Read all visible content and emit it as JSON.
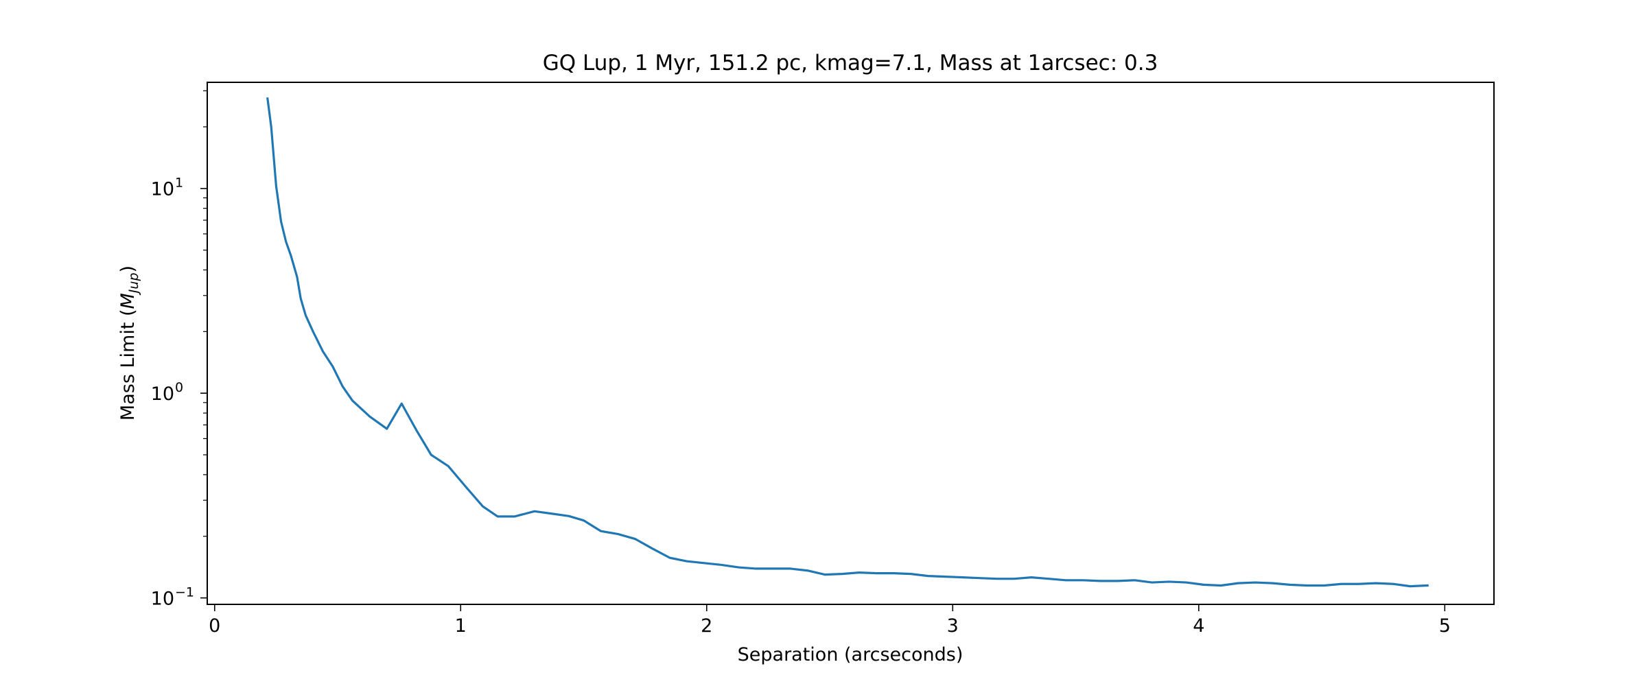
{
  "chart_data": {
    "type": "line",
    "title": "GQ Lup, 1 Myr, 151.2 pc, kmag=7.1, Mass at 1arcsec: 0.3",
    "xlabel": "Separation (arcseconds)",
    "ylabel": {
      "text": "Mass Limit (",
      "math_symbol": "M",
      "math_subscript": "Jup",
      "suffix": ")"
    },
    "yscale": "log",
    "xlim": [
      -0.03,
      5.2
    ],
    "ylim": [
      0.093,
      33
    ],
    "grid": false,
    "x_ticks": [
      {
        "value": 0,
        "label": "0"
      },
      {
        "value": 1,
        "label": "1"
      },
      {
        "value": 2,
        "label": "2"
      },
      {
        "value": 3,
        "label": "3"
      },
      {
        "value": 4,
        "label": "4"
      },
      {
        "value": 5,
        "label": "5"
      }
    ],
    "y_ticks": [
      {
        "value": 0.1,
        "base": "10",
        "exp": "−1"
      },
      {
        "value": 1,
        "base": "10",
        "exp": "0"
      },
      {
        "value": 10,
        "base": "10",
        "exp": "1"
      }
    ],
    "color": "#1f77b4",
    "series": [
      {
        "x": [
          0.215,
          0.23,
          0.25,
          0.27,
          0.29,
          0.31,
          0.335,
          0.35,
          0.37,
          0.4,
          0.44,
          0.48,
          0.52,
          0.56,
          0.63,
          0.7,
          0.76,
          0.82,
          0.88,
          0.95,
          1.02,
          1.09,
          1.15,
          1.22,
          1.3,
          1.37,
          1.44,
          1.5,
          1.57,
          1.64,
          1.71,
          1.78,
          1.85,
          1.92,
          1.99,
          2.06,
          2.13,
          2.2,
          2.27,
          2.34,
          2.41,
          2.48,
          2.55,
          2.62,
          2.69,
          2.76,
          2.83,
          2.9,
          2.97,
          3.04,
          3.11,
          3.18,
          3.25,
          3.32,
          3.39,
          3.46,
          3.53,
          3.6,
          3.67,
          3.74,
          3.81,
          3.88,
          3.95,
          4.02,
          4.09,
          4.16,
          4.23,
          4.3,
          4.37,
          4.44,
          4.51,
          4.58,
          4.65,
          4.72,
          4.79,
          4.86,
          4.93
        ],
        "y": [
          27.5,
          20.0,
          10.3,
          6.9,
          5.5,
          4.7,
          3.7,
          2.9,
          2.4,
          2.0,
          1.6,
          1.35,
          1.08,
          0.92,
          0.77,
          0.67,
          0.89,
          0.66,
          0.5,
          0.44,
          0.35,
          0.28,
          0.25,
          0.25,
          0.265,
          0.258,
          0.251,
          0.239,
          0.212,
          0.205,
          0.194,
          0.174,
          0.157,
          0.151,
          0.148,
          0.145,
          0.141,
          0.139,
          0.139,
          0.139,
          0.136,
          0.13,
          0.131,
          0.133,
          0.132,
          0.132,
          0.131,
          0.128,
          0.127,
          0.126,
          0.125,
          0.124,
          0.124,
          0.126,
          0.124,
          0.122,
          0.122,
          0.121,
          0.121,
          0.122,
          0.119,
          0.12,
          0.119,
          0.116,
          0.115,
          0.118,
          0.119,
          0.118,
          0.116,
          0.115,
          0.115,
          0.117,
          0.117,
          0.118,
          0.117,
          0.114,
          0.115
        ]
      }
    ]
  }
}
